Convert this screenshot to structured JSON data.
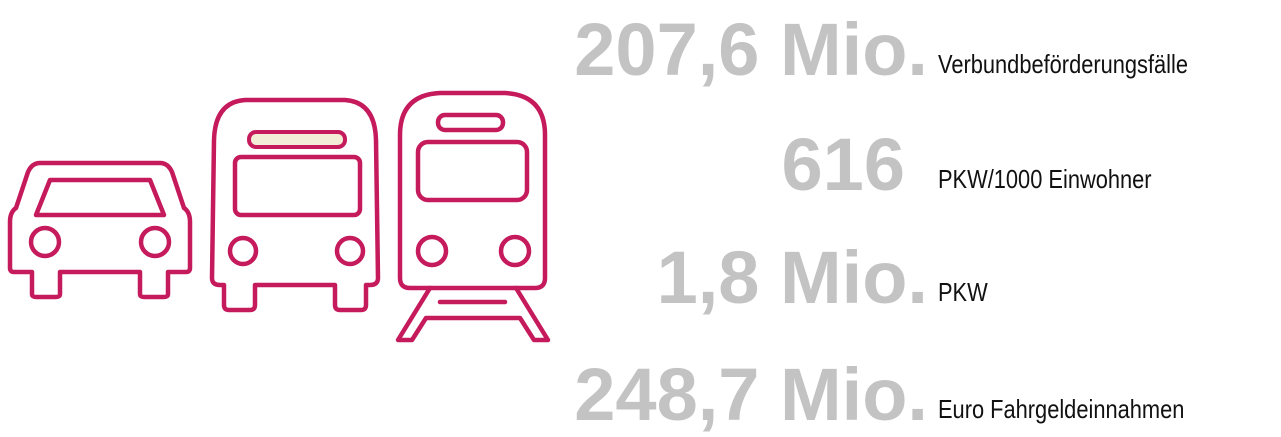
{
  "stats": [
    {
      "value": "207,6 Mio.",
      "label": "Verbundbeförderungsfälle"
    },
    {
      "value": "616",
      "label": "PKW/1000 Einwohner"
    },
    {
      "value": "1,8 Mio.",
      "label": "PKW"
    },
    {
      "value": "248,7 Mio.",
      "label": "Euro Fahrgeldeinnahmen"
    }
  ]
}
